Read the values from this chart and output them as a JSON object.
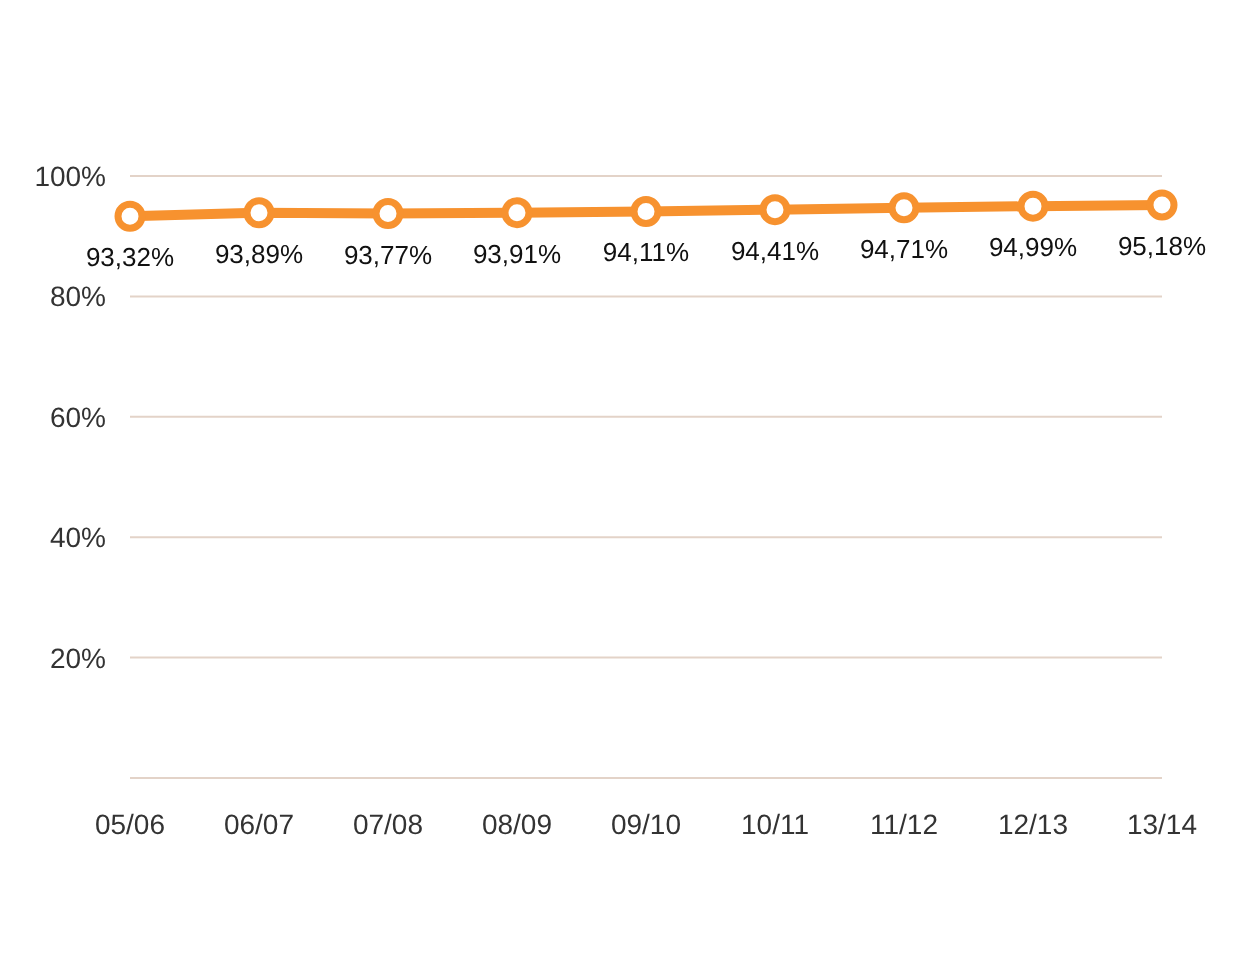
{
  "chart_data": {
    "type": "line",
    "categories": [
      "05/06",
      "06/07",
      "07/08",
      "08/09",
      "09/10",
      "10/11",
      "11/12",
      "12/13",
      "13/14"
    ],
    "series": [
      {
        "color": "#f7922f",
        "values": [
          93.32,
          93.89,
          93.77,
          93.91,
          94.11,
          94.41,
          94.71,
          94.99,
          95.18
        ],
        "value_labels": [
          "93,32%",
          "93,89%",
          "93,77%",
          "93,91%",
          "94,11%",
          "94,41%",
          "94,71%",
          "94,99%",
          "95,18%"
        ]
      }
    ],
    "ylim": [
      0,
      100
    ],
    "yticks": [
      {
        "value": 0,
        "label": null
      },
      {
        "value": 20,
        "label": "20%"
      },
      {
        "value": 40,
        "label": "40%"
      },
      {
        "value": 60,
        "label": "60%"
      },
      {
        "value": 80,
        "label": "80%"
      },
      {
        "value": 100,
        "label": "100%"
      }
    ],
    "grid": "y",
    "marker": "circle",
    "line_style": "solid"
  }
}
